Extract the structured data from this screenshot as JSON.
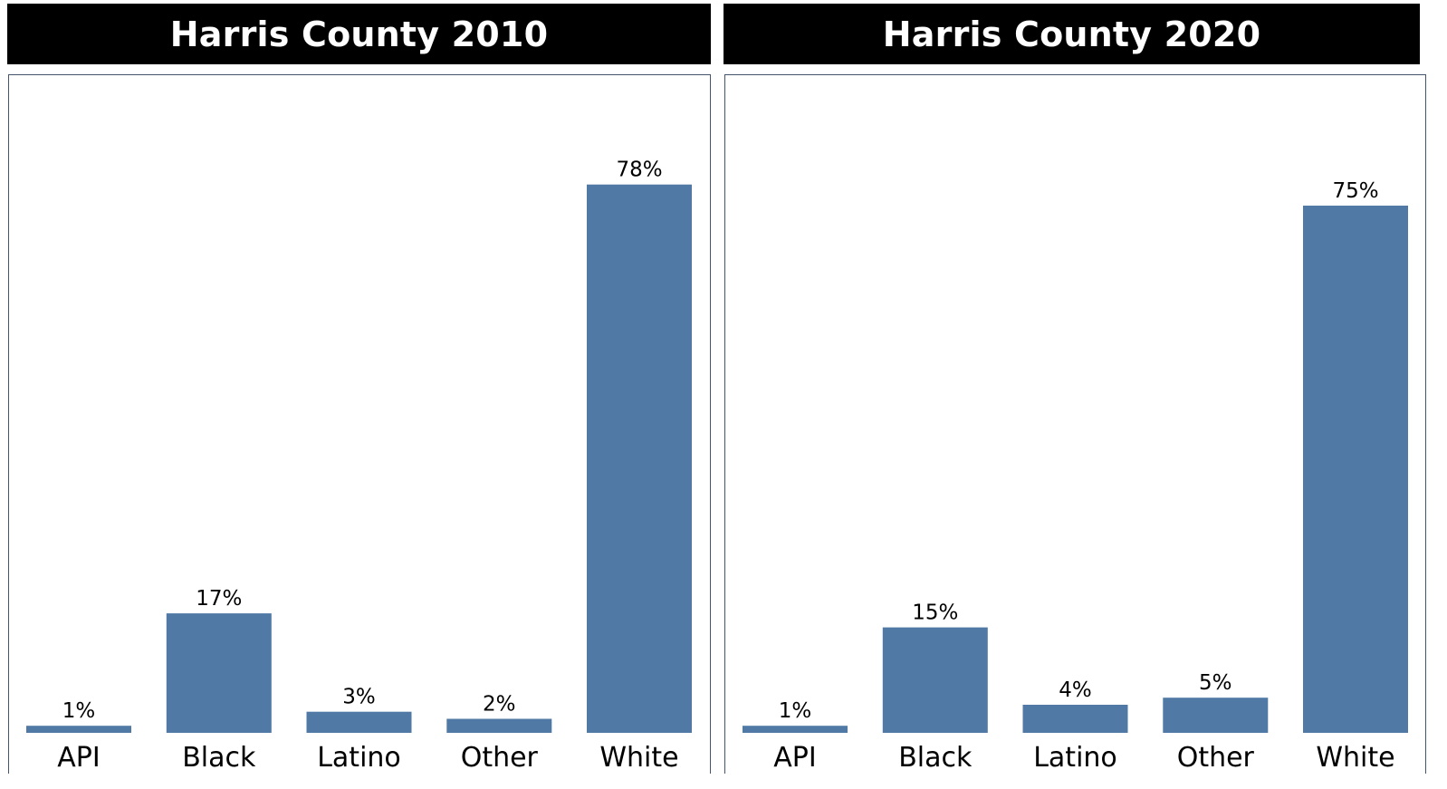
{
  "colors": {
    "bar": "#5079a5",
    "header_bg": "#000000",
    "header_text": "#ffffff",
    "frame": "#44546a"
  },
  "chart_data": [
    {
      "type": "bar",
      "title": "Harris County 2010",
      "categories": [
        "API",
        "Black",
        "Latino",
        "Other",
        "White"
      ],
      "values": [
        1,
        17,
        3,
        2,
        78
      ],
      "value_labels": [
        "1%",
        "17%",
        "3%",
        "2%",
        "78%"
      ],
      "ylim": [
        0,
        100
      ],
      "grid": false,
      "legend": "none"
    },
    {
      "type": "bar",
      "title": "Harris County 2020",
      "categories": [
        "API",
        "Black",
        "Latino",
        "Other",
        "White"
      ],
      "values": [
        1,
        15,
        4,
        5,
        75
      ],
      "value_labels": [
        "1%",
        "15%",
        "4%",
        "5%",
        "75%"
      ],
      "ylim": [
        0,
        100
      ],
      "grid": false,
      "legend": "none"
    }
  ]
}
